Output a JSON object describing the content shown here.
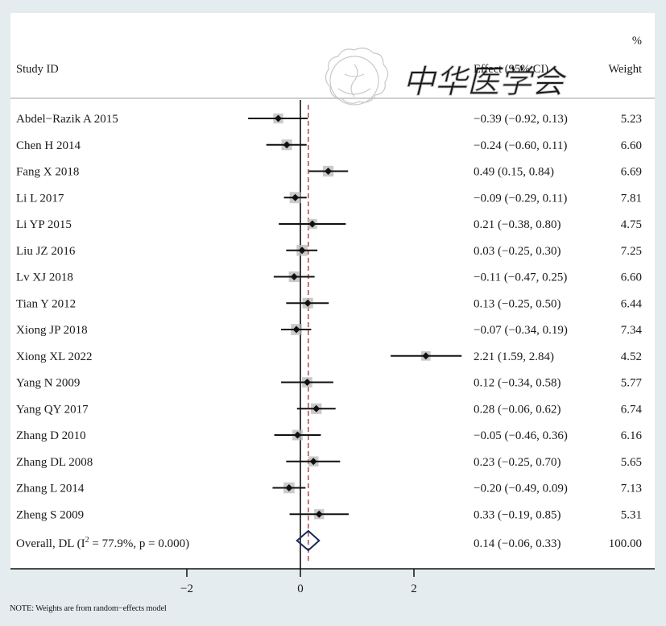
{
  "watermark": {
    "seal_label": "Chinese Medical Association seal",
    "calligraphy": "中华医学会"
  },
  "note": "NOTE: Weights are from random−effects model",
  "colors": {
    "background": "#e5ecef",
    "panel": "#ffffff",
    "ci_line": "#111111",
    "point": "#111111",
    "weight_box": "#b8b8b8",
    "null_line": "#111111",
    "overall_line": "#b03a3a",
    "diamond": "#1b2a5c",
    "header_rule": "#bdbdbd"
  },
  "chart_data": {
    "type": "forest",
    "headers": {
      "study": "Study ID",
      "effect": "Effect (95% CI)",
      "weight_top": "%",
      "weight": "Weight"
    },
    "studies": [
      {
        "id": "Abdel−Razik A 2015",
        "effect": -0.39,
        "lo": -0.92,
        "hi": 0.13,
        "effect_text": "−0.39 (−0.92, 0.13)",
        "weight": 5.23,
        "weight_text": "5.23"
      },
      {
        "id": "Chen H 2014",
        "effect": -0.24,
        "lo": -0.6,
        "hi": 0.11,
        "effect_text": "−0.24 (−0.60, 0.11)",
        "weight": 6.6,
        "weight_text": "6.60"
      },
      {
        "id": "Fang X 2018",
        "effect": 0.49,
        "lo": 0.15,
        "hi": 0.84,
        "effect_text": "0.49 (0.15, 0.84)",
        "weight": 6.69,
        "weight_text": "6.69"
      },
      {
        "id": "Li L 2017",
        "effect": -0.09,
        "lo": -0.29,
        "hi": 0.11,
        "effect_text": "−0.09 (−0.29, 0.11)",
        "weight": 7.81,
        "weight_text": "7.81"
      },
      {
        "id": "Li YP 2015",
        "effect": 0.21,
        "lo": -0.38,
        "hi": 0.8,
        "effect_text": "0.21 (−0.38, 0.80)",
        "weight": 4.75,
        "weight_text": "4.75"
      },
      {
        "id": "Liu JZ 2016",
        "effect": 0.03,
        "lo": -0.25,
        "hi": 0.3,
        "effect_text": "0.03 (−0.25, 0.30)",
        "weight": 7.25,
        "weight_text": "7.25"
      },
      {
        "id": "Lv XJ 2018",
        "effect": -0.11,
        "lo": -0.47,
        "hi": 0.25,
        "effect_text": "−0.11 (−0.47, 0.25)",
        "weight": 6.6,
        "weight_text": "6.60"
      },
      {
        "id": "Tian Y 2012",
        "effect": 0.13,
        "lo": -0.25,
        "hi": 0.5,
        "effect_text": "0.13 (−0.25, 0.50)",
        "weight": 6.44,
        "weight_text": "6.44"
      },
      {
        "id": "Xiong JP 2018",
        "effect": -0.07,
        "lo": -0.34,
        "hi": 0.19,
        "effect_text": "−0.07 (−0.34, 0.19)",
        "weight": 7.34,
        "weight_text": "7.34"
      },
      {
        "id": "Xiong XL 2022",
        "effect": 2.21,
        "lo": 1.59,
        "hi": 2.84,
        "effect_text": "2.21 (1.59, 2.84)",
        "weight": 4.52,
        "weight_text": "4.52"
      },
      {
        "id": "Yang N 2009",
        "effect": 0.12,
        "lo": -0.34,
        "hi": 0.58,
        "effect_text": "0.12 (−0.34, 0.58)",
        "weight": 5.77,
        "weight_text": "5.77"
      },
      {
        "id": "Yang QY 2017",
        "effect": 0.28,
        "lo": -0.06,
        "hi": 0.62,
        "effect_text": "0.28 (−0.06, 0.62)",
        "weight": 6.74,
        "weight_text": "6.74"
      },
      {
        "id": "Zhang D 2010",
        "effect": -0.05,
        "lo": -0.46,
        "hi": 0.36,
        "effect_text": "−0.05 (−0.46, 0.36)",
        "weight": 6.16,
        "weight_text": "6.16"
      },
      {
        "id": "Zhang DL 2008",
        "effect": 0.23,
        "lo": -0.25,
        "hi": 0.7,
        "effect_text": "0.23 (−0.25, 0.70)",
        "weight": 5.65,
        "weight_text": "5.65"
      },
      {
        "id": "Zhang L 2014",
        "effect": -0.2,
        "lo": -0.49,
        "hi": 0.09,
        "effect_text": "−0.20 (−0.49, 0.09)",
        "weight": 7.13,
        "weight_text": "7.13"
      },
      {
        "id": "Zheng S 2009",
        "effect": 0.33,
        "lo": -0.19,
        "hi": 0.85,
        "effect_text": "0.33 (−0.19, 0.85)",
        "weight": 5.31,
        "weight_text": "5.31"
      }
    ],
    "overall": {
      "label_prefix": "Overall, DL (I",
      "label_sup": "2",
      "label_suffix": " = 77.9%, p = 0.000)",
      "effect": 0.14,
      "lo": -0.06,
      "hi": 0.33,
      "effect_text": "0.14 (−0.06, 0.33)",
      "weight": 100.0,
      "weight_text": "100.00",
      "i_squared_pct": 77.9,
      "p_value": 0.0
    },
    "x_axis": {
      "ticks": [
        -2,
        0,
        2
      ],
      "tick_labels": [
        "−2",
        "0",
        "2"
      ],
      "null_value": 0,
      "range": [
        -4.9,
        5.9
      ]
    },
    "xlabel": "",
    "ylabel": "",
    "grid": false,
    "legend": "none"
  }
}
